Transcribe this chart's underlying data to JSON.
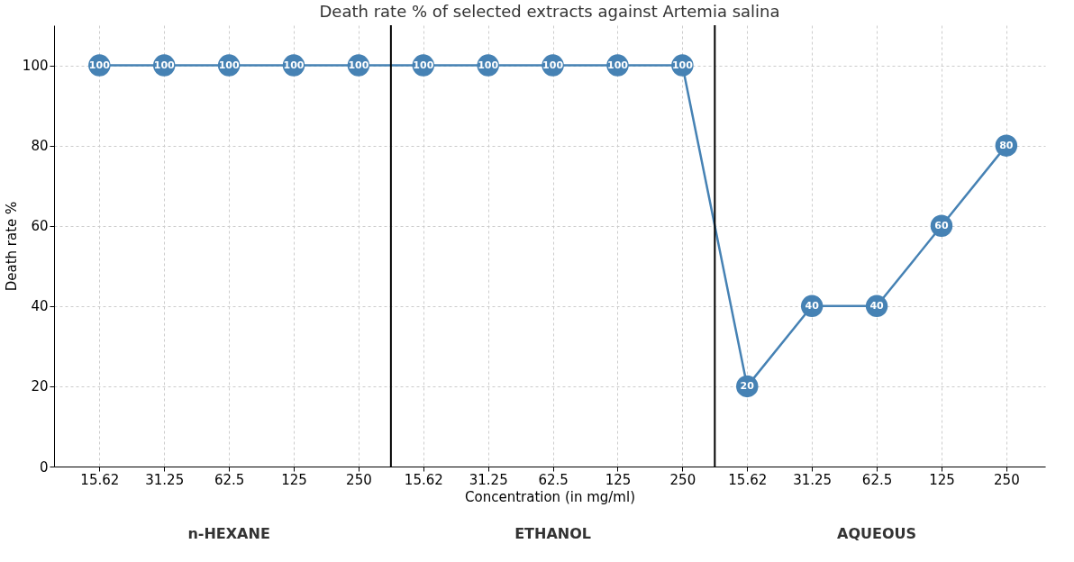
{
  "chart_data": {
    "type": "line",
    "title": "Death rate % of selected extracts against Artemia salina",
    "xlabel": "Concentration (in mg/ml)",
    "ylabel": "Death rate %",
    "categories": [
      "15.62",
      "31.25",
      "62.5",
      "125",
      "250",
      "15.62",
      "31.25",
      "62.5",
      "125",
      "250",
      "15.62",
      "31.25",
      "62.5",
      "125",
      "250"
    ],
    "series": [
      {
        "color": "#4682b4",
        "values": [
          100,
          100,
          100,
          100,
          100,
          100,
          100,
          100,
          100,
          100,
          20,
          40,
          40,
          60,
          80
        ]
      }
    ],
    "ylim": [
      0,
      110
    ],
    "yticks": [
      0,
      20,
      40,
      60,
      80,
      100
    ],
    "annotations": [
      "n-HEXANE",
      "ETHANOL",
      "AQUEOUS"
    ],
    "data_labels": true,
    "marker": "circle",
    "grid": true,
    "line_style": "solid"
  }
}
